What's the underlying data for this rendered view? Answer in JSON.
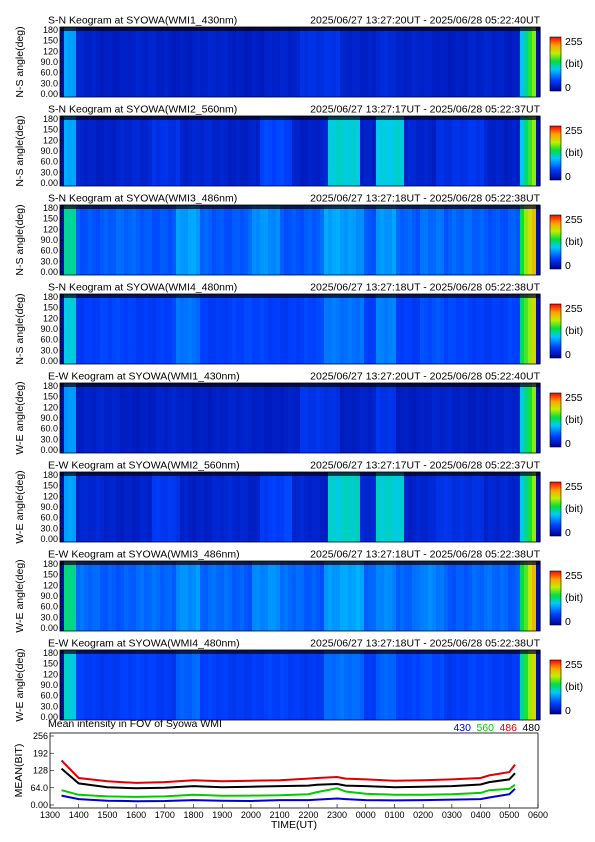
{
  "colorbar": {
    "max_label": "255",
    "unit_label": "(bit)",
    "min_label": "0"
  },
  "keograms": [
    {
      "title": "S-N Keogram at SYOWA(WMI1_430nm)",
      "time_range": "2025/06/27 13:27:20UT - 2025/06/28 05:22:40UT",
      "ylabel": "N-S angle(deg)",
      "base": 26,
      "spread": 5,
      "bands": [
        [
          0.5,
          0.58,
          15
        ],
        [
          0.66,
          0.7,
          10
        ]
      ]
    },
    {
      "title": "S-N Keogram at SYOWA(WMI2_560nm)",
      "time_range": "2025/06/27 13:27:17UT - 2025/06/28 05:22:37UT",
      "ylabel": "N-S angle(deg)",
      "base": 28,
      "spread": 6,
      "bands": [
        [
          0.19,
          0.25,
          14
        ],
        [
          0.42,
          0.48,
          22
        ],
        [
          0.56,
          0.625,
          80
        ],
        [
          0.655,
          0.715,
          80
        ],
        [
          0.78,
          0.88,
          12
        ]
      ]
    },
    {
      "title": "S-N Keogram at SYOWA(WMI3_486nm)",
      "time_range": "2025/06/27 13:27:18UT - 2025/06/28 05:22:38UT",
      "ylabel": "N-S angle(deg)",
      "base": 62,
      "spread": 8,
      "bands": [
        [
          0.24,
          0.29,
          22
        ],
        [
          0.4,
          0.46,
          16
        ],
        [
          0.55,
          0.63,
          24
        ],
        [
          0.66,
          0.7,
          20
        ],
        [
          0.75,
          0.8,
          10
        ]
      ]
    },
    {
      "title": "S-N Keogram at SYOWA(WMI4_480nm)",
      "time_range": "2025/06/27 13:27:18UT - 2025/06/28 05:22:38UT",
      "ylabel": "N-S angle(deg)",
      "base": 50,
      "spread": 6,
      "bands": [
        [
          0.24,
          0.29,
          18
        ],
        [
          0.55,
          0.63,
          22
        ],
        [
          0.66,
          0.7,
          22
        ],
        [
          0.75,
          0.8,
          8
        ]
      ]
    },
    {
      "title": "E-W Keogram at SYOWA(WMI1_430nm)",
      "time_range": "2025/06/27 13:27:20UT - 2025/06/28 05:22:40UT",
      "ylabel": "W-E angle(deg)",
      "base": 26,
      "spread": 5,
      "bands": [
        [
          0.5,
          0.58,
          14
        ],
        [
          0.66,
          0.7,
          14
        ]
      ]
    },
    {
      "title": "E-W Keogram at SYOWA(WMI2_560nm)",
      "time_range": "2025/06/27 13:27:17UT - 2025/06/28 05:22:37UT",
      "ylabel": "W-E angle(deg)",
      "base": 28,
      "spread": 6,
      "bands": [
        [
          0.19,
          0.25,
          14
        ],
        [
          0.42,
          0.48,
          22
        ],
        [
          0.56,
          0.625,
          85
        ],
        [
          0.655,
          0.715,
          85
        ],
        [
          0.78,
          0.88,
          12
        ]
      ]
    },
    {
      "title": "E-W Keogram at SYOWA(WMI3_486nm)",
      "time_range": "2025/06/27 13:27:18UT - 2025/06/28 05:22:38UT",
      "ylabel": "W-E angle(deg)",
      "base": 64,
      "spread": 8,
      "bands": [
        [
          0.24,
          0.29,
          20
        ],
        [
          0.4,
          0.46,
          16
        ],
        [
          0.55,
          0.63,
          22
        ],
        [
          0.66,
          0.7,
          18
        ],
        [
          0.75,
          0.8,
          10
        ]
      ]
    },
    {
      "title": "E-W Keogram at SYOWA(WMI4_480nm)",
      "time_range": "2025/06/27 13:27:18UT - 2025/06/28 05:22:38UT",
      "ylabel": "W-E angle(deg)",
      "base": 48,
      "spread": 6,
      "bands": [
        [
          0.24,
          0.29,
          16
        ],
        [
          0.55,
          0.63,
          18
        ],
        [
          0.66,
          0.7,
          18
        ],
        [
          0.75,
          0.8,
          8
        ]
      ]
    }
  ],
  "chart_data": {
    "type": "line",
    "title": "Mean intensity in FOV of Syowa WMI",
    "xlabel": "TIME(UT)",
    "ylabel": "MEAN(BIT)",
    "xlim": [
      1300,
      3000
    ],
    "ylim": [
      0,
      256
    ],
    "x_ticks": [
      "1300",
      "1400",
      "1500",
      "1600",
      "1700",
      "1800",
      "1900",
      "2000",
      "2100",
      "2200",
      "2300",
      "0000",
      "0100",
      "0200",
      "0300",
      "0400",
      "0500",
      "0600"
    ],
    "keogram_y_ticks": [
      "180",
      "150",
      "120",
      "90.0",
      "60.0",
      "30.0",
      "0.00"
    ],
    "y_ticks": [
      {
        "v": 256,
        "label": "256"
      },
      {
        "v": 192,
        "label": "192"
      },
      {
        "v": 128,
        "label": "128"
      },
      {
        "v": 64,
        "label": "64.0"
      },
      {
        "v": 0,
        "label": "0.00"
      }
    ],
    "x": [
      1340,
      1400,
      1500,
      1600,
      1700,
      1800,
      1900,
      2000,
      2100,
      2200,
      2230,
      2300,
      2330,
      2400,
      2500,
      2600,
      2700,
      2800,
      2830,
      2900,
      2920
    ],
    "series": [
      {
        "name": "430",
        "color": "#0000cc",
        "values": [
          35,
          22,
          16,
          14,
          15,
          18,
          16,
          15,
          18,
          18,
          20,
          24,
          22,
          18,
          17,
          18,
          20,
          22,
          28,
          40,
          60
        ]
      },
      {
        "name": "560",
        "color": "#00cc00",
        "values": [
          55,
          38,
          32,
          30,
          32,
          38,
          34,
          35,
          36,
          40,
          48,
          62,
          50,
          42,
          38,
          38,
          40,
          45,
          55,
          60,
          75
        ]
      },
      {
        "name": "486",
        "color": "#dd0000",
        "values": [
          165,
          100,
          88,
          82,
          85,
          92,
          88,
          90,
          92,
          98,
          100,
          104,
          98,
          95,
          90,
          92,
          95,
          100,
          110,
          122,
          150
        ]
      },
      {
        "name": "480",
        "color": "#000000",
        "values": [
          135,
          80,
          66,
          62,
          64,
          70,
          66,
          68,
          70,
          72,
          75,
          78,
          72,
          70,
          66,
          68,
          70,
          76,
          85,
          95,
          118
        ]
      }
    ]
  }
}
